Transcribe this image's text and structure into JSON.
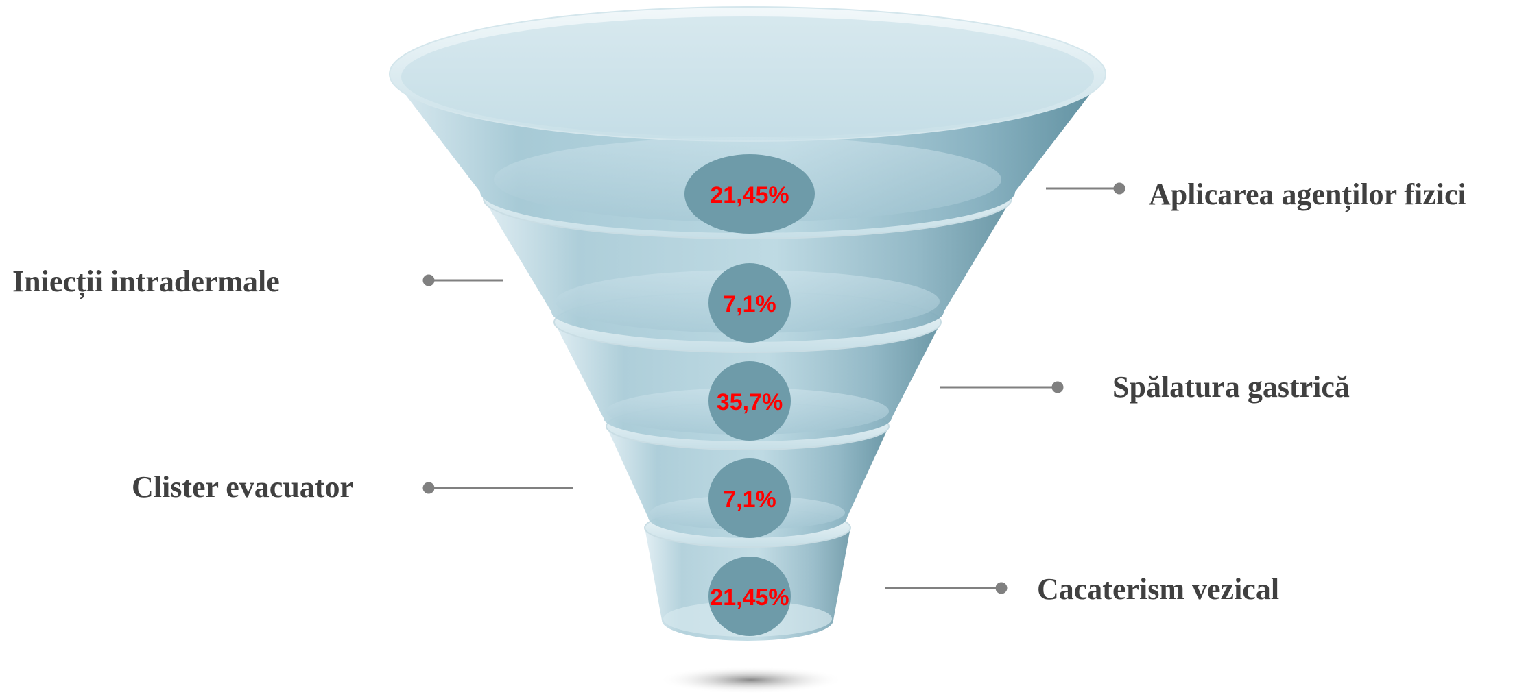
{
  "funnel": {
    "stages": [
      {
        "label": "Aplicarea agenților fizici",
        "value": "21,45%"
      },
      {
        "label": "Iniecții intradermale",
        "value": "7,1%"
      },
      {
        "label": "Spălatura gastrică",
        "value": "35,7%"
      },
      {
        "label": "Clister evacuator",
        "value": "7,1%"
      },
      {
        "label": "Cacaterism vezical",
        "value": "21,45%"
      }
    ]
  },
  "colors": {
    "funnel_body": "#a9ccd8",
    "funnel_dark": "#4f8396",
    "badge": "#6e9ba9",
    "value_text": "#ff0000",
    "label_text": "#404040",
    "connector": "#808080"
  }
}
